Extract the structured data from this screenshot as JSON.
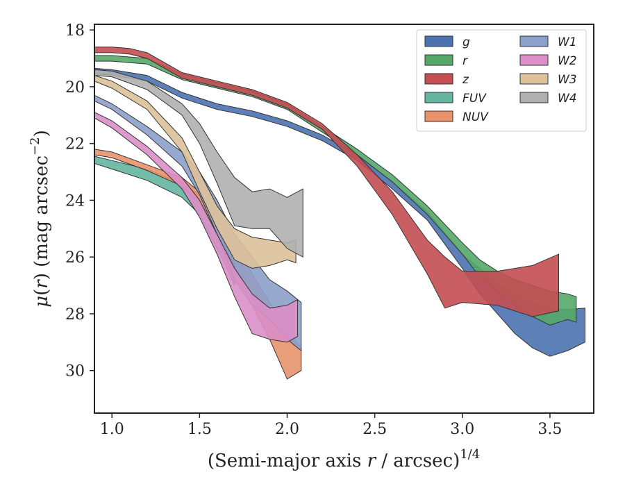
{
  "chart_data": {
    "type": "area",
    "xlabel": "(Semi-major axis r / arcsec)^1/4",
    "xlabel_parts": {
      "pre": "(Semi-major axis ",
      "var": "r",
      "post": " / arcsec)",
      "sup": "1/4"
    },
    "ylabel": "μ(r) (mag arcsec^-2)",
    "ylabel_parts": {
      "mu": "μ",
      "open": "(",
      "var": "r",
      "close": ") (mag arcsec",
      "sup": "−2",
      "end": ")"
    },
    "xlim": [
      0.9,
      3.75
    ],
    "ylim": [
      31.5,
      17.8
    ],
    "y_inverted": true,
    "xticks": [
      1.0,
      1.5,
      2.0,
      2.5,
      3.0,
      3.5
    ],
    "xtick_labels": [
      "1.0",
      "1.5",
      "2.0",
      "2.5",
      "3.0",
      "3.5"
    ],
    "yticks": [
      18,
      20,
      22,
      24,
      26,
      28,
      30
    ],
    "ytick_labels": [
      "18",
      "20",
      "22",
      "24",
      "26",
      "28",
      "30"
    ],
    "grid": false,
    "legend_position": "top-right",
    "legend_columns": 2,
    "series": [
      {
        "name": "g",
        "color": "#4c72b0",
        "upper": [
          [
            0.9,
            19.35
          ],
          [
            1.0,
            19.4
          ],
          [
            1.2,
            19.6
          ],
          [
            1.4,
            20.2
          ],
          [
            1.6,
            20.6
          ],
          [
            1.8,
            20.85
          ],
          [
            2.0,
            21.2
          ],
          [
            2.2,
            21.7
          ],
          [
            2.4,
            22.4
          ],
          [
            2.6,
            23.35
          ],
          [
            2.8,
            24.4
          ],
          [
            3.0,
            25.9
          ],
          [
            3.1,
            26.4
          ],
          [
            3.2,
            26.9
          ],
          [
            3.3,
            27.3
          ],
          [
            3.4,
            27.6
          ],
          [
            3.5,
            27.8
          ],
          [
            3.6,
            27.85
          ],
          [
            3.7,
            27.8
          ]
        ],
        "lower": [
          [
            0.9,
            19.55
          ],
          [
            1.0,
            19.6
          ],
          [
            1.2,
            19.8
          ],
          [
            1.4,
            20.4
          ],
          [
            1.6,
            20.8
          ],
          [
            1.8,
            21.05
          ],
          [
            2.0,
            21.4
          ],
          [
            2.2,
            21.9
          ],
          [
            2.4,
            22.6
          ],
          [
            2.6,
            23.6
          ],
          [
            2.8,
            24.7
          ],
          [
            3.0,
            26.4
          ],
          [
            3.1,
            27.3
          ],
          [
            3.2,
            28.0
          ],
          [
            3.3,
            28.7
          ],
          [
            3.4,
            29.2
          ],
          [
            3.5,
            29.5
          ],
          [
            3.6,
            29.3
          ],
          [
            3.7,
            29.0
          ]
        ]
      },
      {
        "name": "r",
        "color": "#55a868",
        "upper": [
          [
            0.9,
            18.9
          ],
          [
            1.0,
            18.9
          ],
          [
            1.2,
            19.0
          ],
          [
            1.4,
            19.55
          ],
          [
            1.6,
            19.85
          ],
          [
            1.8,
            20.15
          ],
          [
            2.0,
            20.6
          ],
          [
            2.2,
            21.4
          ],
          [
            2.4,
            22.2
          ],
          [
            2.6,
            23.1
          ],
          [
            2.8,
            24.2
          ],
          [
            3.0,
            25.5
          ],
          [
            3.1,
            26.1
          ],
          [
            3.2,
            26.5
          ],
          [
            3.3,
            26.8
          ],
          [
            3.4,
            27.0
          ],
          [
            3.5,
            27.2
          ],
          [
            3.6,
            27.3
          ],
          [
            3.65,
            27.4
          ]
        ],
        "lower": [
          [
            0.9,
            19.1
          ],
          [
            1.0,
            19.1
          ],
          [
            1.2,
            19.2
          ],
          [
            1.4,
            19.75
          ],
          [
            1.6,
            20.05
          ],
          [
            1.8,
            20.35
          ],
          [
            2.0,
            20.8
          ],
          [
            2.2,
            21.6
          ],
          [
            2.4,
            22.4
          ],
          [
            2.6,
            23.35
          ],
          [
            2.8,
            24.5
          ],
          [
            3.0,
            25.9
          ],
          [
            3.1,
            26.7
          ],
          [
            3.2,
            27.2
          ],
          [
            3.3,
            27.7
          ],
          [
            3.4,
            28.1
          ],
          [
            3.5,
            28.4
          ],
          [
            3.6,
            28.2
          ],
          [
            3.65,
            28.3
          ]
        ]
      },
      {
        "name": "z",
        "color": "#c44e52",
        "upper": [
          [
            0.9,
            18.6
          ],
          [
            1.0,
            18.6
          ],
          [
            1.1,
            18.65
          ],
          [
            1.2,
            18.8
          ],
          [
            1.4,
            19.5
          ],
          [
            1.6,
            19.8
          ],
          [
            1.8,
            20.1
          ],
          [
            2.0,
            20.55
          ],
          [
            2.2,
            21.3
          ],
          [
            2.4,
            22.4
          ],
          [
            2.6,
            23.7
          ],
          [
            2.8,
            25.4
          ],
          [
            2.9,
            26.0
          ],
          [
            3.0,
            26.5
          ],
          [
            3.2,
            26.5
          ],
          [
            3.4,
            26.3
          ],
          [
            3.55,
            25.9
          ]
        ],
        "lower": [
          [
            0.9,
            18.8
          ],
          [
            1.0,
            18.8
          ],
          [
            1.1,
            18.85
          ],
          [
            1.2,
            19.0
          ],
          [
            1.4,
            19.7
          ],
          [
            1.6,
            20.0
          ],
          [
            1.8,
            20.3
          ],
          [
            2.0,
            20.75
          ],
          [
            2.2,
            21.5
          ],
          [
            2.4,
            22.8
          ],
          [
            2.6,
            24.5
          ],
          [
            2.8,
            26.6
          ],
          [
            2.9,
            27.8
          ],
          [
            3.0,
            27.6
          ],
          [
            3.2,
            27.7
          ],
          [
            3.4,
            28.1
          ],
          [
            3.55,
            27.9
          ]
        ]
      },
      {
        "name": "FUV",
        "color": "#64b5a0",
        "upper": [
          [
            0.9,
            22.45
          ],
          [
            1.0,
            22.6
          ],
          [
            1.2,
            22.9
          ],
          [
            1.4,
            23.4
          ],
          [
            1.5,
            23.8
          ],
          [
            1.6,
            24.7
          ],
          [
            1.65,
            25.2
          ],
          [
            1.7,
            25.7
          ]
        ],
        "lower": [
          [
            0.9,
            22.7
          ],
          [
            1.0,
            22.9
          ],
          [
            1.2,
            23.3
          ],
          [
            1.4,
            23.9
          ],
          [
            1.5,
            24.5
          ],
          [
            1.6,
            25.7
          ],
          [
            1.65,
            26.3
          ],
          [
            1.7,
            27.0
          ]
        ]
      },
      {
        "name": "NUV",
        "color": "#e8926a",
        "upper": [
          [
            0.9,
            22.2
          ],
          [
            1.0,
            22.3
          ],
          [
            1.2,
            22.75
          ],
          [
            1.4,
            23.2
          ],
          [
            1.5,
            23.7
          ],
          [
            1.6,
            24.6
          ],
          [
            1.7,
            25.4
          ],
          [
            1.8,
            26.6
          ],
          [
            1.9,
            27.6
          ],
          [
            2.0,
            28.6
          ],
          [
            2.08,
            29.2
          ]
        ],
        "lower": [
          [
            0.9,
            22.4
          ],
          [
            1.0,
            22.5
          ],
          [
            1.2,
            22.95
          ],
          [
            1.4,
            23.5
          ],
          [
            1.5,
            24.1
          ],
          [
            1.6,
            25.2
          ],
          [
            1.7,
            26.3
          ],
          [
            1.8,
            27.7
          ],
          [
            1.9,
            28.9
          ],
          [
            2.0,
            30.3
          ],
          [
            2.08,
            30.0
          ]
        ]
      },
      {
        "name": "W1",
        "color": "#8da0cb",
        "upper": [
          [
            0.9,
            20.3
          ],
          [
            1.0,
            20.6
          ],
          [
            1.2,
            21.4
          ],
          [
            1.4,
            22.3
          ],
          [
            1.5,
            23.0
          ],
          [
            1.6,
            24.0
          ],
          [
            1.7,
            25.2
          ],
          [
            1.8,
            26.0
          ],
          [
            1.9,
            26.8
          ],
          [
            2.0,
            27.2
          ],
          [
            2.08,
            27.6
          ]
        ],
        "lower": [
          [
            0.9,
            20.5
          ],
          [
            1.0,
            20.8
          ],
          [
            1.2,
            21.7
          ],
          [
            1.4,
            22.8
          ],
          [
            1.5,
            23.8
          ],
          [
            1.6,
            25.2
          ],
          [
            1.7,
            26.8
          ],
          [
            1.8,
            27.7
          ],
          [
            1.9,
            28.2
          ],
          [
            2.0,
            28.9
          ],
          [
            2.08,
            29.3
          ]
        ]
      },
      {
        "name": "W2",
        "color": "#dc8fc8",
        "upper": [
          [
            0.9,
            20.9
          ],
          [
            1.0,
            21.2
          ],
          [
            1.2,
            22.1
          ],
          [
            1.4,
            23.2
          ],
          [
            1.5,
            24.0
          ],
          [
            1.6,
            25.2
          ],
          [
            1.7,
            26.4
          ],
          [
            1.8,
            27.3
          ],
          [
            1.9,
            27.8
          ],
          [
            2.0,
            27.7
          ],
          [
            2.06,
            27.5
          ]
        ],
        "lower": [
          [
            0.9,
            21.1
          ],
          [
            1.0,
            21.45
          ],
          [
            1.2,
            22.4
          ],
          [
            1.4,
            23.6
          ],
          [
            1.5,
            24.6
          ],
          [
            1.6,
            25.9
          ],
          [
            1.7,
            27.4
          ],
          [
            1.8,
            28.7
          ],
          [
            1.9,
            28.9
          ],
          [
            2.0,
            29.0
          ],
          [
            2.06,
            28.8
          ]
        ]
      },
      {
        "name": "W3",
        "color": "#ddc19a",
        "upper": [
          [
            0.9,
            19.6
          ],
          [
            1.0,
            19.8
          ],
          [
            1.2,
            20.5
          ],
          [
            1.4,
            21.8
          ],
          [
            1.5,
            23.0
          ],
          [
            1.6,
            24.2
          ],
          [
            1.7,
            25.0
          ],
          [
            1.8,
            25.3
          ],
          [
            1.9,
            25.4
          ],
          [
            2.0,
            25.5
          ],
          [
            2.05,
            25.4
          ]
        ],
        "lower": [
          [
            0.9,
            19.8
          ],
          [
            1.0,
            20.05
          ],
          [
            1.2,
            20.8
          ],
          [
            1.4,
            22.3
          ],
          [
            1.5,
            23.7
          ],
          [
            1.6,
            25.0
          ],
          [
            1.7,
            26.1
          ],
          [
            1.8,
            26.4
          ],
          [
            1.9,
            26.3
          ],
          [
            2.0,
            26.1
          ],
          [
            2.05,
            26.2
          ]
        ]
      },
      {
        "name": "W4",
        "color": "#b0b0b0",
        "upper": [
          [
            0.9,
            19.4
          ],
          [
            1.0,
            19.45
          ],
          [
            1.2,
            19.8
          ],
          [
            1.4,
            20.6
          ],
          [
            1.5,
            21.3
          ],
          [
            1.6,
            22.3
          ],
          [
            1.7,
            23.2
          ],
          [
            1.8,
            23.7
          ],
          [
            1.9,
            23.6
          ],
          [
            2.0,
            23.9
          ],
          [
            2.09,
            23.6
          ]
        ],
        "lower": [
          [
            0.9,
            19.6
          ],
          [
            1.0,
            19.65
          ],
          [
            1.2,
            20.1
          ],
          [
            1.4,
            21.0
          ],
          [
            1.5,
            22.0
          ],
          [
            1.6,
            23.4
          ],
          [
            1.7,
            24.9
          ],
          [
            1.8,
            25.0
          ],
          [
            1.9,
            25.0
          ],
          [
            2.0,
            25.7
          ],
          [
            2.09,
            26.0
          ]
        ]
      }
    ]
  }
}
